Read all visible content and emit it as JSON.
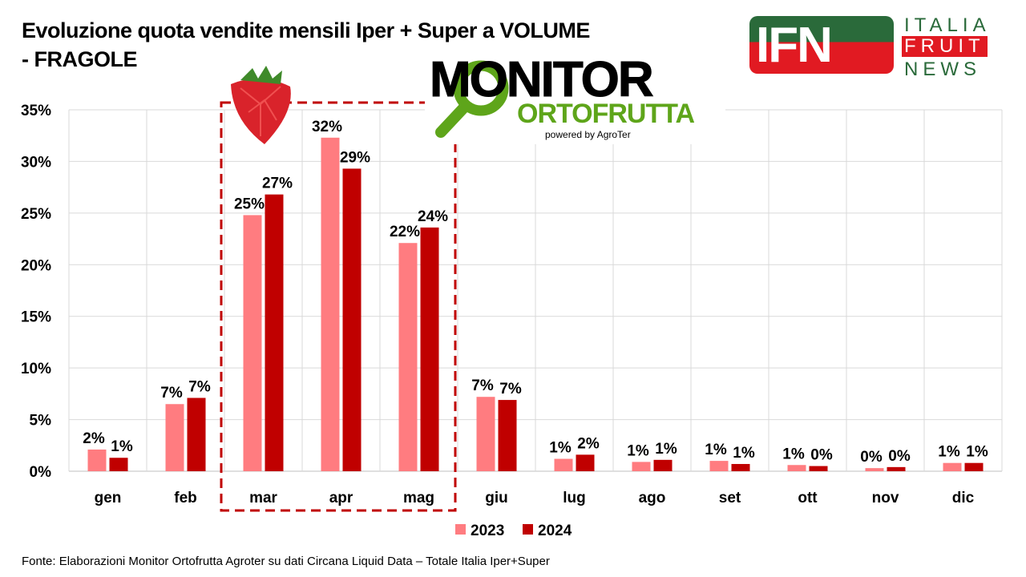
{
  "chart_data": {
    "type": "bar",
    "title": "Evoluzione quota vendite mensili Iper + Super a VOLUME - FRAGOLE",
    "title_lines": [
      "Evoluzione quota vendite mensili Iper + Super a VOLUME",
      "- FRAGOLE"
    ],
    "categories": [
      "gen",
      "feb",
      "mar",
      "apr",
      "mag",
      "giu",
      "lug",
      "ago",
      "set",
      "ott",
      "nov",
      "dic"
    ],
    "series": [
      {
        "name": "2023",
        "color": "#ff7c80",
        "values": [
          2.1,
          6.5,
          24.8,
          32.3,
          22.1,
          7.2,
          1.2,
          0.9,
          1.0,
          0.6,
          0.3,
          0.8
        ],
        "labels": [
          "2%",
          "7%",
          "25%",
          "32%",
          "22%",
          "7%",
          "1%",
          "1%",
          "1%",
          "1%",
          "0%",
          "1%"
        ]
      },
      {
        "name": "2024",
        "color": "#c00000",
        "values": [
          1.3,
          7.1,
          26.8,
          29.3,
          23.6,
          6.9,
          1.6,
          1.1,
          0.7,
          0.5,
          0.4,
          0.8
        ],
        "labels": [
          "1%",
          "7%",
          "27%",
          "29%",
          "24%",
          "7%",
          "2%",
          "1%",
          "1%",
          "0%",
          "0%",
          "1%"
        ]
      }
    ],
    "ylim": [
      0,
      35
    ],
    "yticks": [
      "0%",
      "5%",
      "10%",
      "15%",
      "20%",
      "25%",
      "30%",
      "35%"
    ],
    "grid": true,
    "legend_position": "bottom",
    "highlight_categories": [
      "mar",
      "apr",
      "mag"
    ]
  },
  "source": "Fonte: Elaborazioni Monitor Ortofrutta Agroter su dati Circana Liquid Data – Totale Italia Iper+Super",
  "logos": {
    "monitor": {
      "line1": "MONITOR",
      "line2": "ORTOFRUTTA",
      "line3": "powered by AgroTer"
    },
    "ifn": {
      "mark": "IFN",
      "words": [
        "ITALIA",
        "FRUIT",
        "NEWS"
      ]
    }
  }
}
